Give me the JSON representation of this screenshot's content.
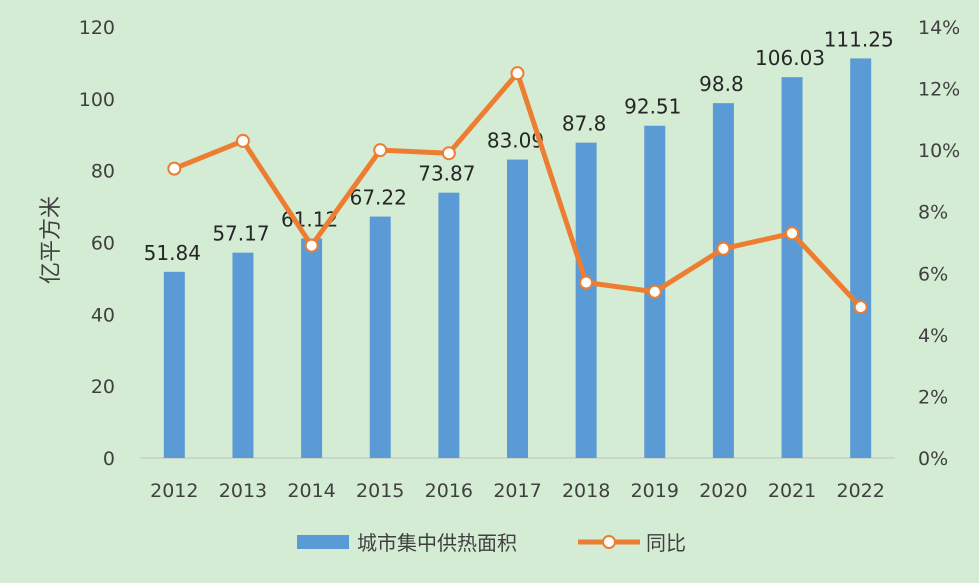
{
  "chart_data": {
    "type": "bar",
    "categories": [
      "2012",
      "2013",
      "2014",
      "2015",
      "2016",
      "2017",
      "2018",
      "2019",
      "2020",
      "2021",
      "2022"
    ],
    "series": [
      {
        "name": "城市集中供热面积",
        "kind": "bar",
        "axis": "left",
        "values": [
          51.84,
          57.17,
          61.12,
          67.22,
          73.87,
          83.09,
          87.8,
          92.51,
          98.8,
          106.03,
          111.25
        ],
        "labels": [
          "51.84",
          "57.17",
          "61.12",
          "67.22",
          "73.87",
          "83.09",
          "87.8",
          "92.51",
          "98.8",
          "106.03",
          "111.25"
        ],
        "color": "#5b9bd5"
      },
      {
        "name": "同比",
        "kind": "line",
        "axis": "right",
        "values": [
          9.4,
          10.3,
          6.9,
          10.0,
          9.9,
          12.5,
          5.7,
          5.4,
          6.8,
          7.3,
          4.9
        ],
        "color": "#ed7d31"
      }
    ],
    "ylabel": "亿平方米",
    "ylim": [
      0,
      120
    ],
    "yticks": [
      "0",
      "20",
      "40",
      "60",
      "80",
      "100",
      "120"
    ],
    "y2lim": [
      0,
      14
    ],
    "y2ticks": [
      "0%",
      "2%",
      "4%",
      "6%",
      "8%",
      "10%",
      "12%",
      "14%"
    ],
    "legend": "bottom",
    "grid": false
  }
}
